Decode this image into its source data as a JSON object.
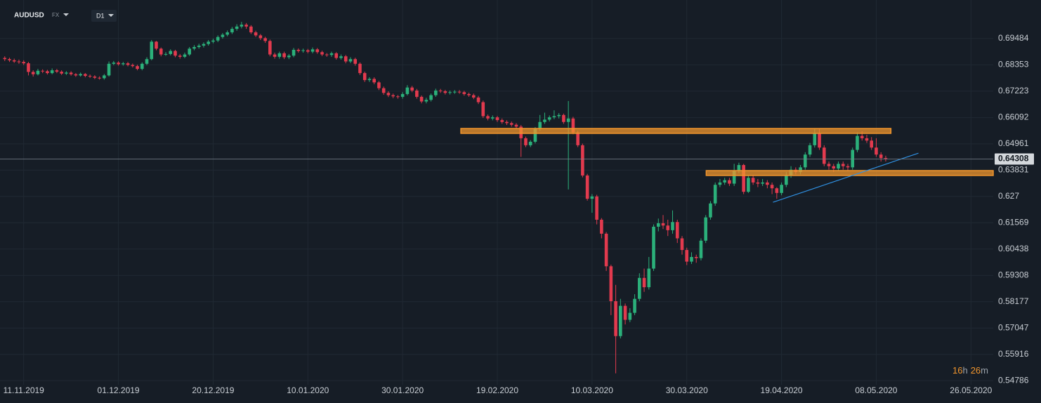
{
  "chart_data": {
    "type": "candlestick",
    "symbol": "AUDUSD",
    "market": "FX",
    "timeframe": "D1",
    "countdown": [
      "16",
      "h",
      "26",
      "m"
    ],
    "last_price": {
      "value": 0.64308,
      "label": "0.64308"
    },
    "ylim": [
      0.5461,
      0.7114
    ],
    "xlim": [
      -1,
      208.7
    ],
    "yticks": [
      0.69484,
      0.68353,
      0.67223,
      0.66092,
      0.64961,
      0.63831,
      0.627,
      0.61569,
      0.60438,
      0.59308,
      0.58177,
      0.57047,
      0.55916,
      0.54786
    ],
    "xticks": [
      {
        "value": 4,
        "label": "11.11.2019"
      },
      {
        "value": 24,
        "label": "01.12.2019"
      },
      {
        "value": 44,
        "label": "20.12.2019"
      },
      {
        "value": 64,
        "label": "10.01.2020"
      },
      {
        "value": 84,
        "label": "30.01.2020"
      },
      {
        "value": 104,
        "label": "19.02.2020"
      },
      {
        "value": 124,
        "label": "10.03.2020"
      },
      {
        "value": 144,
        "label": "30.03.2020"
      },
      {
        "value": 164,
        "label": "19.04.2020"
      },
      {
        "value": 184,
        "label": "08.05.2020"
      },
      {
        "value": 204,
        "label": "26.05.2020"
      }
    ],
    "up_color": "#2bb07a",
    "down_color": "#e23a4e",
    "grid": true,
    "zones": [
      {
        "x": [
          96.3,
          187.1
        ],
        "price": [
          0.6562,
          0.6541
        ],
        "color": "#f0952d"
      },
      {
        "x": [
          148.1,
          208.7
        ],
        "price": [
          0.6381,
          0.636
        ],
        "color": "#f0952d"
      }
    ],
    "trendline": {
      "x": [
        162.2,
        192.9
      ],
      "price": [
        0.6245,
        0.6456
      ],
      "color": "#2f8fe0"
    },
    "open": [
      0.6865,
      0.686,
      0.6855,
      0.685,
      0.6848,
      0.6842,
      0.6805,
      0.6795,
      0.681,
      0.6808,
      0.68,
      0.6812,
      0.6806,
      0.6798,
      0.6802,
      0.6795,
      0.679,
      0.6796,
      0.6788,
      0.6785,
      0.678,
      0.6778,
      0.679,
      0.684,
      0.6845,
      0.6838,
      0.6842,
      0.6835,
      0.683,
      0.6818,
      0.684,
      0.686,
      0.6935,
      0.6905,
      0.688,
      0.6882,
      0.6895,
      0.6875,
      0.687,
      0.688,
      0.6905,
      0.6912,
      0.6918,
      0.6925,
      0.6935,
      0.694,
      0.6955,
      0.6965,
      0.6975,
      0.699,
      0.7,
      0.7008,
      0.7,
      0.6975,
      0.6962,
      0.695,
      0.6938,
      0.688,
      0.687,
      0.6885,
      0.6868,
      0.6875,
      0.69,
      0.6895,
      0.6898,
      0.6892,
      0.6902,
      0.689,
      0.688,
      0.6878,
      0.6885,
      0.6865,
      0.6872,
      0.685,
      0.686,
      0.684,
      0.68,
      0.677,
      0.6775,
      0.676,
      0.6735,
      0.6715,
      0.6705,
      0.67,
      0.6698,
      0.671,
      0.6738,
      0.6725,
      0.6698,
      0.6678,
      0.6685,
      0.6705,
      0.6725,
      0.6722,
      0.6715,
      0.6718,
      0.672,
      0.6718,
      0.671,
      0.6705,
      0.6695,
      0.6675,
      0.6615,
      0.6605,
      0.661,
      0.6598,
      0.659,
      0.6585,
      0.6578,
      0.657,
      0.652,
      0.649,
      0.6505,
      0.656,
      0.659,
      0.66,
      0.661,
      0.6615,
      0.662,
      0.659,
      0.6605,
      0.6545,
      0.649,
      0.636,
      0.626,
      0.627,
      0.617,
      0.611,
      0.597,
      0.582,
      0.567,
      0.58,
      0.574,
      0.577,
      0.583,
      0.592,
      0.588,
      0.596,
      0.614,
      0.6155,
      0.6145,
      0.6125,
      0.616,
      0.609,
      0.604,
      0.599,
      0.601,
      0.6005,
      0.608,
      0.618,
      0.624,
      0.632,
      0.633,
      0.634,
      0.6325,
      0.638,
      0.6405,
      0.629,
      0.635,
      0.633,
      0.6325,
      0.633,
      0.632,
      0.6305,
      0.6285,
      0.632,
      0.636,
      0.6385,
      0.6375,
      0.6395,
      0.645,
      0.649,
      0.654,
      0.648,
      0.641,
      0.64,
      0.639,
      0.641,
      0.64,
      0.6395,
      0.647,
      0.653,
      0.652,
      0.651,
      0.648,
      0.645,
      0.6435
    ],
    "high": [
      0.6872,
      0.6866,
      0.6862,
      0.6858,
      0.6855,
      0.6848,
      0.6812,
      0.6818,
      0.6816,
      0.6814,
      0.682,
      0.6818,
      0.6812,
      0.6808,
      0.6808,
      0.68,
      0.6802,
      0.68,
      0.6794,
      0.6791,
      0.6786,
      0.6796,
      0.685,
      0.6852,
      0.6851,
      0.6848,
      0.6848,
      0.6841,
      0.6836,
      0.6846,
      0.6868,
      0.6942,
      0.6938,
      0.691,
      0.689,
      0.6902,
      0.69,
      0.6882,
      0.6888,
      0.6912,
      0.692,
      0.6926,
      0.6932,
      0.6942,
      0.6948,
      0.6962,
      0.6972,
      0.6983,
      0.6998,
      0.701,
      0.702,
      0.7015,
      0.7006,
      0.6982,
      0.6968,
      0.6956,
      0.6944,
      0.6888,
      0.6892,
      0.6892,
      0.6882,
      0.6908,
      0.6906,
      0.6905,
      0.6904,
      0.691,
      0.6908,
      0.6896,
      0.6886,
      0.6892,
      0.689,
      0.688,
      0.6878,
      0.6868,
      0.6866,
      0.6846,
      0.6806,
      0.6782,
      0.6782,
      0.6766,
      0.6742,
      0.6722,
      0.6712,
      0.6706,
      0.6718,
      0.6748,
      0.6745,
      0.6732,
      0.6704,
      0.6694,
      0.6712,
      0.6733,
      0.6732,
      0.6728,
      0.6725,
      0.6727,
      0.6727,
      0.6724,
      0.6716,
      0.6712,
      0.6702,
      0.6682,
      0.6622,
      0.6618,
      0.6616,
      0.6605,
      0.6597,
      0.6592,
      0.6585,
      0.6577,
      0.6527,
      0.6512,
      0.6568,
      0.662,
      0.663,
      0.6618,
      0.664,
      0.6628,
      0.6626,
      0.668,
      0.6612,
      0.6552,
      0.6497,
      0.6367,
      0.628,
      0.6277,
      0.6177,
      0.6117,
      0.5977,
      0.589,
      0.583,
      0.581,
      0.579,
      0.585,
      0.594,
      0.596,
      0.601,
      0.615,
      0.6175,
      0.619,
      0.617,
      0.621,
      0.617,
      0.61,
      0.605,
      0.603,
      0.602,
      0.609,
      0.619,
      0.625,
      0.633,
      0.6345,
      0.635,
      0.635,
      0.641,
      0.6415,
      0.641,
      0.636,
      0.636,
      0.6345,
      0.6345,
      0.634,
      0.633,
      0.631,
      0.633,
      0.6375,
      0.64,
      0.6395,
      0.6405,
      0.646,
      0.65,
      0.656,
      0.656,
      0.649,
      0.642,
      0.641,
      0.642,
      0.642,
      0.641,
      0.648,
      0.6545,
      0.655,
      0.6535,
      0.6525,
      0.652,
      0.646,
      0.6445
    ],
    "low": [
      0.6852,
      0.6848,
      0.6844,
      0.684,
      0.6835,
      0.679,
      0.6785,
      0.679,
      0.68,
      0.6794,
      0.6795,
      0.68,
      0.6792,
      0.6792,
      0.6789,
      0.6784,
      0.6785,
      0.6782,
      0.6779,
      0.6774,
      0.6772,
      0.6772,
      0.6785,
      0.6834,
      0.6832,
      0.6832,
      0.6829,
      0.6824,
      0.6812,
      0.6812,
      0.6834,
      0.6855,
      0.6898,
      0.6872,
      0.6874,
      0.6876,
      0.6868,
      0.6862,
      0.6864,
      0.6874,
      0.6898,
      0.6905,
      0.691,
      0.6918,
      0.6928,
      0.6933,
      0.6948,
      0.6958,
      0.6968,
      0.6982,
      0.6992,
      0.699,
      0.6968,
      0.6955,
      0.6942,
      0.693,
      0.6872,
      0.6862,
      0.6862,
      0.686,
      0.686,
      0.6868,
      0.6888,
      0.6888,
      0.6885,
      0.6885,
      0.6883,
      0.6873,
      0.687,
      0.687,
      0.6858,
      0.6858,
      0.6842,
      0.6843,
      0.6832,
      0.6792,
      0.6762,
      0.6762,
      0.6752,
      0.6727,
      0.6707,
      0.6697,
      0.6692,
      0.669,
      0.669,
      0.6704,
      0.6718,
      0.669,
      0.667,
      0.667,
      0.6678,
      0.6698,
      0.6715,
      0.6708,
      0.6708,
      0.6711,
      0.6711,
      0.6703,
      0.6698,
      0.6688,
      0.6667,
      0.6607,
      0.6597,
      0.6597,
      0.659,
      0.6582,
      0.6577,
      0.657,
      0.6562,
      0.644,
      0.6482,
      0.6482,
      0.6498,
      0.6552,
      0.6582,
      0.6592,
      0.6602,
      0.6605,
      0.6582,
      0.63,
      0.6537,
      0.6482,
      0.6352,
      0.6252,
      0.62,
      0.615,
      0.609,
      0.595,
      0.576,
      0.551,
      0.566,
      0.572,
      0.573,
      0.576,
      0.582,
      0.586,
      0.587,
      0.595,
      0.612,
      0.613,
      0.61,
      0.611,
      0.607,
      0.602,
      0.5975,
      0.598,
      0.5985,
      0.5995,
      0.607,
      0.617,
      0.623,
      0.631,
      0.632,
      0.6315,
      0.6315,
      0.637,
      0.628,
      0.6285,
      0.632,
      0.631,
      0.6315,
      0.6305,
      0.628,
      0.626,
      0.6275,
      0.631,
      0.635,
      0.6365,
      0.6365,
      0.6385,
      0.644,
      0.648,
      0.647,
      0.64,
      0.6385,
      0.6375,
      0.638,
      0.6385,
      0.638,
      0.6385,
      0.646,
      0.651,
      0.65,
      0.647,
      0.644,
      0.642,
      0.642
    ],
    "close": [
      0.686,
      0.6855,
      0.685,
      0.6848,
      0.6842,
      0.6805,
      0.6795,
      0.681,
      0.6808,
      0.68,
      0.6812,
      0.6806,
      0.6798,
      0.6802,
      0.6795,
      0.679,
      0.6796,
      0.6788,
      0.6785,
      0.678,
      0.6778,
      0.679,
      0.684,
      0.6845,
      0.6838,
      0.6842,
      0.6835,
      0.683,
      0.6818,
      0.684,
      0.686,
      0.6935,
      0.6905,
      0.688,
      0.6882,
      0.6895,
      0.6875,
      0.687,
      0.688,
      0.6905,
      0.6912,
      0.6918,
      0.6925,
      0.6935,
      0.694,
      0.6955,
      0.6965,
      0.6975,
      0.699,
      0.7,
      0.7008,
      0.7,
      0.6975,
      0.6962,
      0.695,
      0.6938,
      0.688,
      0.687,
      0.6885,
      0.6868,
      0.6875,
      0.69,
      0.6895,
      0.6898,
      0.6892,
      0.6902,
      0.689,
      0.688,
      0.6878,
      0.6885,
      0.6865,
      0.6872,
      0.685,
      0.686,
      0.684,
      0.68,
      0.677,
      0.6775,
      0.676,
      0.6735,
      0.6715,
      0.6705,
      0.67,
      0.6698,
      0.671,
      0.6738,
      0.6725,
      0.6698,
      0.6678,
      0.6685,
      0.6705,
      0.6725,
      0.6722,
      0.6715,
      0.6718,
      0.672,
      0.6718,
      0.671,
      0.6705,
      0.6695,
      0.6675,
      0.6615,
      0.6605,
      0.661,
      0.6598,
      0.659,
      0.6585,
      0.6578,
      0.657,
      0.652,
      0.649,
      0.6505,
      0.656,
      0.659,
      0.66,
      0.661,
      0.6615,
      0.662,
      0.659,
      0.6605,
      0.6545,
      0.649,
      0.636,
      0.626,
      0.627,
      0.617,
      0.611,
      0.597,
      0.582,
      0.567,
      0.58,
      0.574,
      0.577,
      0.583,
      0.592,
      0.588,
      0.596,
      0.614,
      0.6155,
      0.6145,
      0.6125,
      0.616,
      0.609,
      0.604,
      0.599,
      0.601,
      0.6005,
      0.608,
      0.618,
      0.624,
      0.632,
      0.633,
      0.634,
      0.6325,
      0.638,
      0.6405,
      0.629,
      0.635,
      0.633,
      0.6325,
      0.633,
      0.632,
      0.6305,
      0.6285,
      0.632,
      0.636,
      0.6385,
      0.6375,
      0.6395,
      0.645,
      0.649,
      0.654,
      0.648,
      0.641,
      0.64,
      0.639,
      0.641,
      0.64,
      0.6395,
      0.647,
      0.653,
      0.652,
      0.651,
      0.648,
      0.645,
      0.6435,
      0.6431
    ]
  }
}
